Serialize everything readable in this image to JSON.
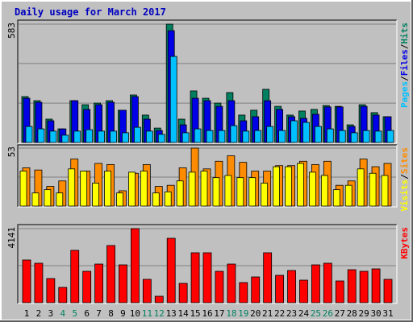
{
  "chart_data": [
    {
      "type": "bar",
      "title": "Daily usage for March 2017",
      "ylim": [
        0,
        583
      ],
      "yticks": [
        583
      ],
      "grid_values": [
        194,
        389
      ],
      "legend_separator": "/",
      "series": [
        {
          "name": "Hits",
          "color": "#008060",
          "values": [
            226,
            206,
            115,
            67,
            206,
            186,
            194,
            206,
            159,
            234,
            135,
            71,
            583,
            115,
            254,
            218,
            194,
            246,
            135,
            159,
            262,
            178,
            135,
            155,
            163,
            182,
            178,
            87,
            186,
            147,
            127
          ]
        },
        {
          "name": "Files",
          "color": "#0000e6",
          "values": [
            218,
            198,
            107,
            67,
            206,
            163,
            186,
            198,
            159,
            226,
            115,
            59,
            551,
            87,
            218,
            206,
            178,
            206,
            107,
            127,
            206,
            163,
            127,
            119,
            139,
            175,
            175,
            79,
            178,
            135,
            127
          ]
        },
        {
          "name": "Pages",
          "color": "#00c0ff",
          "values": [
            79,
            67,
            56,
            36,
            56,
            63,
            56,
            56,
            48,
            75,
            56,
            40,
            424,
            48,
            67,
            59,
            59,
            83,
            56,
            59,
            79,
            59,
            107,
            99,
            79,
            67,
            59,
            48,
            59,
            56,
            59
          ]
        }
      ]
    },
    {
      "type": "bar",
      "ylim": [
        0,
        53
      ],
      "yticks": [
        53
      ],
      "grid_values": [
        26.5
      ],
      "legend_separator": "/",
      "series": [
        {
          "name": "Sites",
          "color": "#ff8c00",
          "values": [
            35,
            33,
            18,
            23,
            43,
            32,
            39,
            38,
            14,
            30,
            38,
            18,
            19,
            35,
            53,
            34,
            41,
            46,
            40,
            32,
            32,
            37,
            37,
            41,
            38,
            41,
            19,
            23,
            43,
            36,
            39
          ]
        },
        {
          "name": "Visits",
          "color": "#ffff00",
          "values": [
            32,
            12,
            15,
            12,
            34,
            32,
            21,
            32,
            12,
            31,
            32,
            12,
            13,
            23,
            31,
            32,
            26,
            28,
            26,
            26,
            21,
            36,
            36,
            39,
            31,
            28,
            15,
            19,
            34,
            30,
            28
          ]
        }
      ]
    },
    {
      "type": "bar",
      "ylim": [
        0,
        4141
      ],
      "yticks": [
        4141
      ],
      "grid_values": [
        2070
      ],
      "categories": [
        "1",
        "2",
        "3",
        "4",
        "5",
        "6",
        "7",
        "8",
        "9",
        "10",
        "11",
        "12",
        "13",
        "14",
        "15",
        "16",
        "17",
        "18",
        "19",
        "20",
        "21",
        "22",
        "23",
        "24",
        "25",
        "26",
        "27",
        "28",
        "29",
        "30",
        "31"
      ],
      "category_colors": [
        "#000000",
        "#000000",
        "#000000",
        "#008060",
        "#008060",
        "#000000",
        "#000000",
        "#000000",
        "#000000",
        "#000000",
        "#008060",
        "#008060",
        "#000000",
        "#000000",
        "#000000",
        "#000000",
        "#000000",
        "#008060",
        "#008060",
        "#000000",
        "#000000",
        "#000000",
        "#000000",
        "#000000",
        "#008060",
        "#008060",
        "#000000",
        "#000000",
        "#000000",
        "#000000",
        "#000000"
      ],
      "series": [
        {
          "name": "KBytes",
          "color": "#ff0000",
          "values": [
            2386,
            2206,
            1350,
            855,
            2926,
            1755,
            2160,
            3196,
            2115,
            4141,
            1305,
            360,
            3601,
            1080,
            2791,
            2791,
            1755,
            2160,
            1125,
            1440,
            2791,
            1530,
            1800,
            1260,
            2115,
            2206,
            1215,
            1845,
            1755,
            1890,
            1305
          ]
        }
      ]
    }
  ]
}
